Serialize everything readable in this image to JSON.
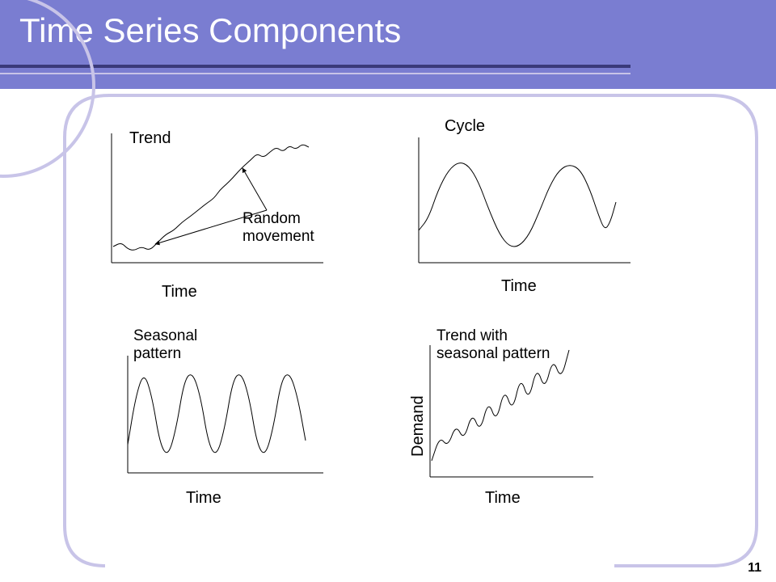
{
  "header": {
    "title": "Time Series Components",
    "bg_color": "#7a7dd1",
    "title_color": "#ffffff",
    "title_fontsize": 42,
    "underline_dark": "#3a3a7a",
    "underline_light": "#c8c4e8"
  },
  "frame": {
    "border_color": "#c8c4e8",
    "border_width": 4,
    "border_radius": 48
  },
  "page_number": "11",
  "panels": {
    "trend": {
      "title": "Trend",
      "sublabel": "Random\nmovement",
      "xlabel": "Time",
      "axis_color": "#000000",
      "line_color": "#000000",
      "line_width": 1,
      "path_points": [
        [
          10,
          145
        ],
        [
          20,
          140
        ],
        [
          28,
          148
        ],
        [
          36,
          150
        ],
        [
          45,
          145
        ],
        [
          55,
          150
        ],
        [
          65,
          140
        ],
        [
          75,
          130
        ],
        [
          85,
          125
        ],
        [
          95,
          115
        ],
        [
          105,
          108
        ],
        [
          115,
          100
        ],
        [
          125,
          92
        ],
        [
          135,
          85
        ],
        [
          142,
          75
        ],
        [
          150,
          68
        ],
        [
          158,
          60
        ],
        [
          165,
          52
        ],
        [
          172,
          45
        ],
        [
          180,
          38
        ],
        [
          188,
          30
        ],
        [
          196,
          35
        ],
        [
          204,
          28
        ],
        [
          212,
          22
        ],
        [
          220,
          28
        ],
        [
          228,
          20
        ],
        [
          236,
          25
        ],
        [
          244,
          18
        ],
        [
          252,
          22
        ]
      ],
      "arrow_annotations": [
        {
          "from": [
            200,
            100
          ],
          "to": [
            170,
            45
          ]
        },
        {
          "from": [
            200,
            100
          ],
          "to": [
            60,
            142
          ]
        }
      ]
    },
    "cycle": {
      "title": "Cycle",
      "xlabel": "Time",
      "axis_color": "#000000",
      "line_color": "#000000",
      "line_width": 1,
      "path_points": [
        [
          8,
          120
        ],
        [
          20,
          105
        ],
        [
          32,
          70
        ],
        [
          45,
          45
        ],
        [
          58,
          35
        ],
        [
          70,
          40
        ],
        [
          82,
          60
        ],
        [
          95,
          95
        ],
        [
          108,
          125
        ],
        [
          120,
          140
        ],
        [
          132,
          140
        ],
        [
          145,
          125
        ],
        [
          158,
          95
        ],
        [
          170,
          65
        ],
        [
          182,
          45
        ],
        [
          195,
          38
        ],
        [
          208,
          45
        ],
        [
          220,
          70
        ],
        [
          230,
          100
        ],
        [
          238,
          120
        ],
        [
          245,
          110
        ],
        [
          252,
          85
        ]
      ]
    },
    "seasonal": {
      "title": "Seasonal\npattern",
      "xlabel": "Time",
      "axis_color": "#000000",
      "line_color": "#000000",
      "line_width": 1,
      "path_points": [
        [
          8,
          115
        ],
        [
          18,
          55
        ],
        [
          28,
          25
        ],
        [
          38,
          55
        ],
        [
          48,
          115
        ],
        [
          58,
          130
        ],
        [
          68,
          95
        ],
        [
          78,
          35
        ],
        [
          88,
          25
        ],
        [
          98,
          55
        ],
        [
          108,
          115
        ],
        [
          118,
          130
        ],
        [
          128,
          95
        ],
        [
          138,
          35
        ],
        [
          148,
          25
        ],
        [
          158,
          55
        ],
        [
          168,
          115
        ],
        [
          178,
          130
        ],
        [
          188,
          95
        ],
        [
          198,
          35
        ],
        [
          208,
          25
        ],
        [
          218,
          55
        ],
        [
          228,
          110
        ]
      ]
    },
    "trend_seasonal": {
      "title": "Trend  with\nseasonal pattern",
      "xlabel": "Time",
      "ylabel": "Demand",
      "axis_color": "#000000",
      "line_color": "#000000",
      "line_width": 1,
      "path_points": [
        [
          10,
          145
        ],
        [
          20,
          115
        ],
        [
          30,
          128
        ],
        [
          40,
          100
        ],
        [
          50,
          120
        ],
        [
          60,
          85
        ],
        [
          70,
          110
        ],
        [
          80,
          70
        ],
        [
          90,
          98
        ],
        [
          100,
          55
        ],
        [
          110,
          85
        ],
        [
          120,
          40
        ],
        [
          130,
          72
        ],
        [
          140,
          28
        ],
        [
          150,
          58
        ],
        [
          160,
          18
        ],
        [
          170,
          45
        ],
        [
          180,
          8
        ]
      ]
    }
  }
}
